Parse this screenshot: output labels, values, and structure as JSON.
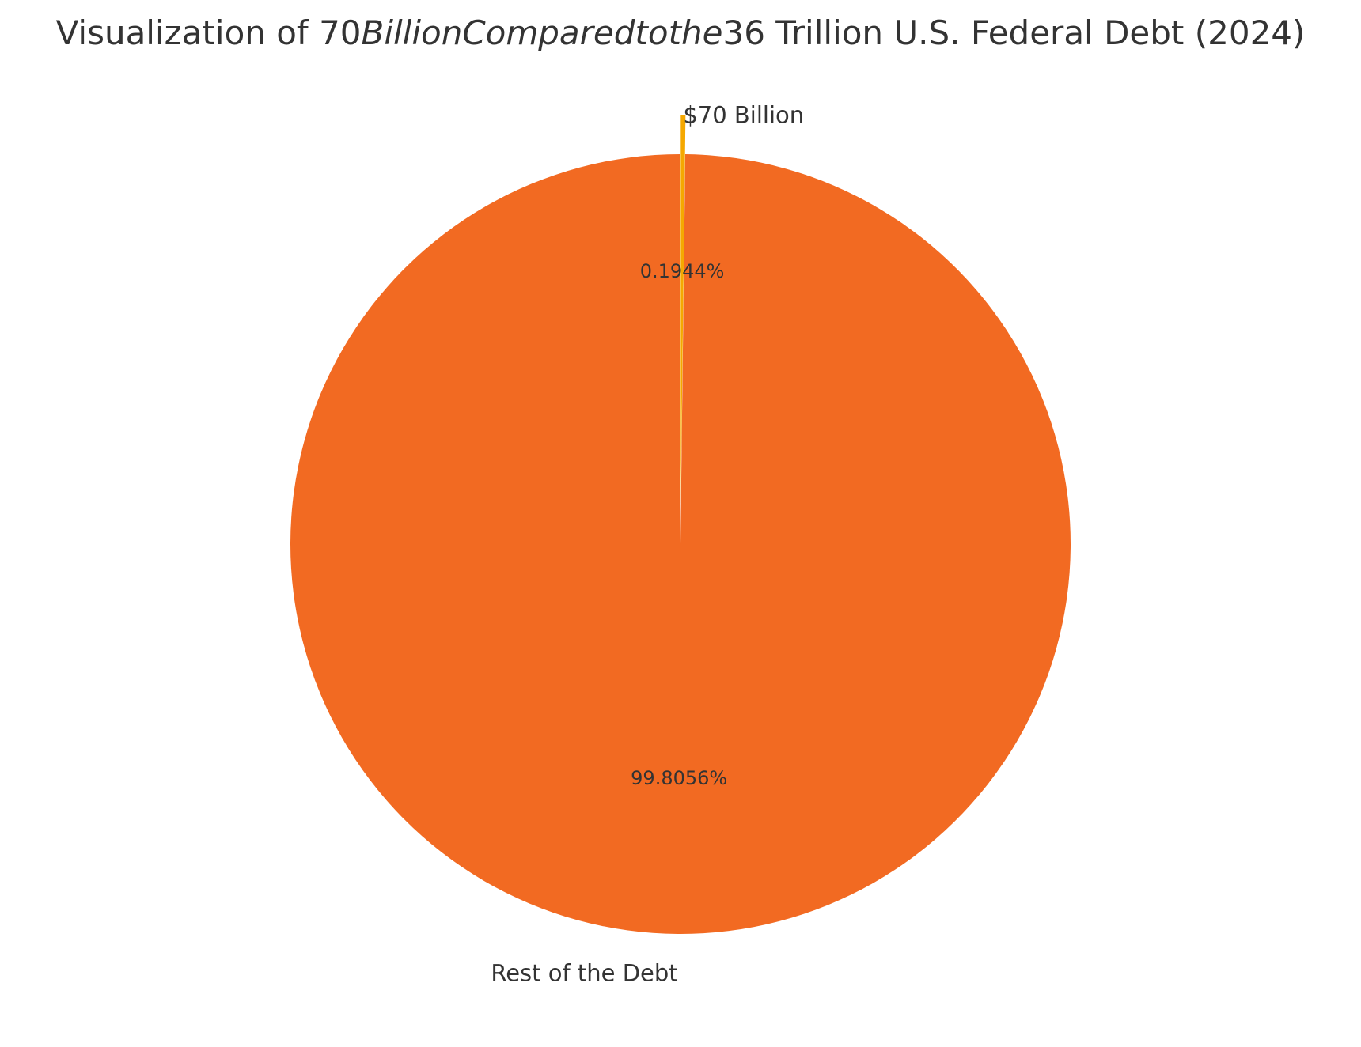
{
  "chart_data": {
    "type": "pie",
    "title": {
      "prefix": "Visualization of 70",
      "math": "BillionComparedtothe",
      "suffix": "36 Trillion U.S. Federal Debt (2024)"
    },
    "slices": [
      {
        "label": "$70 Billion",
        "value": 70,
        "pct_label": "0.1944%",
        "color": "#F5A800",
        "exploded": true
      },
      {
        "label": "Rest of the Debt",
        "value": 35930,
        "pct_label": "99.8056%",
        "color": "#F26A22",
        "exploded": false
      }
    ],
    "start_angle_deg": 90,
    "direction": "clockwise"
  }
}
